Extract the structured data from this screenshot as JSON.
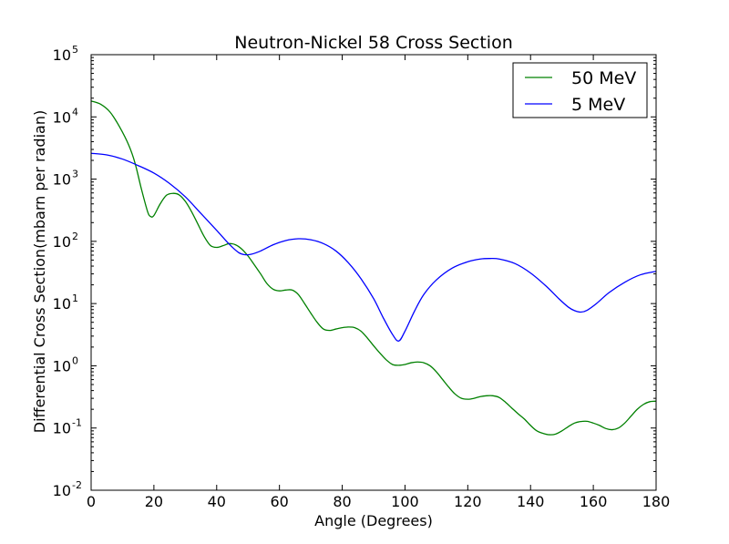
{
  "chart_data": {
    "type": "line",
    "title": "Neutron-Nickel 58 Cross Section",
    "xlabel": "Angle (Degrees)",
    "ylabel": "Differential Cross Section(mbarn per radian)",
    "xlim": [
      0,
      180
    ],
    "ylim": [
      0.01,
      100000
    ],
    "yscale": "log",
    "grid": false,
    "legend_position": "top-right",
    "x_ticks": [
      {
        "value": 0,
        "label": "0"
      },
      {
        "value": 20,
        "label": "20"
      },
      {
        "value": 40,
        "label": "40"
      },
      {
        "value": 60,
        "label": "60"
      },
      {
        "value": 80,
        "label": "80"
      },
      {
        "value": 100,
        "label": "100"
      },
      {
        "value": 120,
        "label": "120"
      },
      {
        "value": 140,
        "label": "140"
      },
      {
        "value": 160,
        "label": "160"
      },
      {
        "value": 180,
        "label": "180"
      }
    ],
    "y_ticks": [
      {
        "value": 0.01,
        "base": "10",
        "exp": "-2"
      },
      {
        "value": 0.1,
        "base": "10",
        "exp": "-1"
      },
      {
        "value": 1,
        "base": "10",
        "exp": "0"
      },
      {
        "value": 10,
        "base": "10",
        "exp": "1"
      },
      {
        "value": 100,
        "base": "10",
        "exp": "2"
      },
      {
        "value": 1000,
        "base": "10",
        "exp": "3"
      },
      {
        "value": 10000,
        "base": "10",
        "exp": "4"
      },
      {
        "value": 100000,
        "base": "10",
        "exp": "5"
      }
    ],
    "series": [
      {
        "name": "50 MeV",
        "color": "#008000",
        "points": [
          [
            0,
            18000
          ],
          [
            3,
            16000
          ],
          [
            6,
            12000
          ],
          [
            9,
            7000
          ],
          [
            12,
            3500
          ],
          [
            14,
            1800
          ],
          [
            16,
            700
          ],
          [
            18,
            300
          ],
          [
            19,
            250
          ],
          [
            20,
            260
          ],
          [
            22,
            400
          ],
          [
            24,
            550
          ],
          [
            26,
            590
          ],
          [
            28,
            560
          ],
          [
            30,
            440
          ],
          [
            32,
            300
          ],
          [
            34,
            190
          ],
          [
            36,
            120
          ],
          [
            38,
            86
          ],
          [
            40,
            80
          ],
          [
            42,
            85
          ],
          [
            44,
            92
          ],
          [
            46,
            88
          ],
          [
            48,
            75
          ],
          [
            50,
            58
          ],
          [
            52,
            42
          ],
          [
            54,
            30
          ],
          [
            56,
            21
          ],
          [
            58,
            17
          ],
          [
            60,
            16
          ],
          [
            62,
            16.5
          ],
          [
            64,
            16.5
          ],
          [
            66,
            14
          ],
          [
            68,
            10
          ],
          [
            70,
            7
          ],
          [
            72,
            5
          ],
          [
            74,
            3.9
          ],
          [
            76,
            3.7
          ],
          [
            78,
            3.9
          ],
          [
            80,
            4.1
          ],
          [
            82,
            4.2
          ],
          [
            84,
            4.1
          ],
          [
            86,
            3.6
          ],
          [
            88,
            2.8
          ],
          [
            90,
            2.1
          ],
          [
            92,
            1.6
          ],
          [
            94,
            1.25
          ],
          [
            96,
            1.05
          ],
          [
            98,
            1.02
          ],
          [
            100,
            1.05
          ],
          [
            102,
            1.12
          ],
          [
            104,
            1.15
          ],
          [
            106,
            1.12
          ],
          [
            108,
            1.0
          ],
          [
            110,
            0.8
          ],
          [
            112,
            0.6
          ],
          [
            114,
            0.45
          ],
          [
            116,
            0.35
          ],
          [
            118,
            0.3
          ],
          [
            120,
            0.29
          ],
          [
            122,
            0.3
          ],
          [
            124,
            0.32
          ],
          [
            126,
            0.33
          ],
          [
            128,
            0.33
          ],
          [
            130,
            0.31
          ],
          [
            132,
            0.26
          ],
          [
            134,
            0.21
          ],
          [
            136,
            0.17
          ],
          [
            138,
            0.14
          ],
          [
            140,
            0.11
          ],
          [
            142,
            0.09
          ],
          [
            144,
            0.082
          ],
          [
            146,
            0.078
          ],
          [
            148,
            0.08
          ],
          [
            150,
            0.09
          ],
          [
            152,
            0.105
          ],
          [
            154,
            0.12
          ],
          [
            156,
            0.127
          ],
          [
            158,
            0.128
          ],
          [
            160,
            0.12
          ],
          [
            162,
            0.11
          ],
          [
            164,
            0.098
          ],
          [
            166,
            0.094
          ],
          [
            168,
            0.1
          ],
          [
            170,
            0.12
          ],
          [
            172,
            0.155
          ],
          [
            174,
            0.2
          ],
          [
            176,
            0.24
          ],
          [
            178,
            0.265
          ],
          [
            180,
            0.27
          ]
        ]
      },
      {
        "name": "5 MeV",
        "color": "#0000ff",
        "points": [
          [
            0,
            2600
          ],
          [
            5,
            2450
          ],
          [
            10,
            2100
          ],
          [
            15,
            1650
          ],
          [
            20,
            1250
          ],
          [
            25,
            850
          ],
          [
            30,
            520
          ],
          [
            35,
            280
          ],
          [
            40,
            150
          ],
          [
            44,
            90
          ],
          [
            47,
            66
          ],
          [
            49,
            61
          ],
          [
            51,
            62
          ],
          [
            54,
            70
          ],
          [
            58,
            88
          ],
          [
            62,
            103
          ],
          [
            66,
            110
          ],
          [
            70,
            106
          ],
          [
            74,
            92
          ],
          [
            78,
            70
          ],
          [
            82,
            45
          ],
          [
            86,
            25
          ],
          [
            90,
            12
          ],
          [
            93,
            6
          ],
          [
            96,
            3.2
          ],
          [
            98,
            2.5
          ],
          [
            100,
            3.6
          ],
          [
            103,
            7.5
          ],
          [
            106,
            14
          ],
          [
            110,
            24
          ],
          [
            115,
            37
          ],
          [
            120,
            47
          ],
          [
            124,
            52
          ],
          [
            127,
            53
          ],
          [
            130,
            52
          ],
          [
            135,
            44
          ],
          [
            140,
            31
          ],
          [
            145,
            19
          ],
          [
            149,
            12
          ],
          [
            152,
            8.8
          ],
          [
            154,
            7.7
          ],
          [
            156,
            7.3
          ],
          [
            158,
            7.8
          ],
          [
            161,
            10
          ],
          [
            165,
            15
          ],
          [
            170,
            22
          ],
          [
            175,
            29
          ],
          [
            180,
            33
          ]
        ]
      }
    ]
  }
}
